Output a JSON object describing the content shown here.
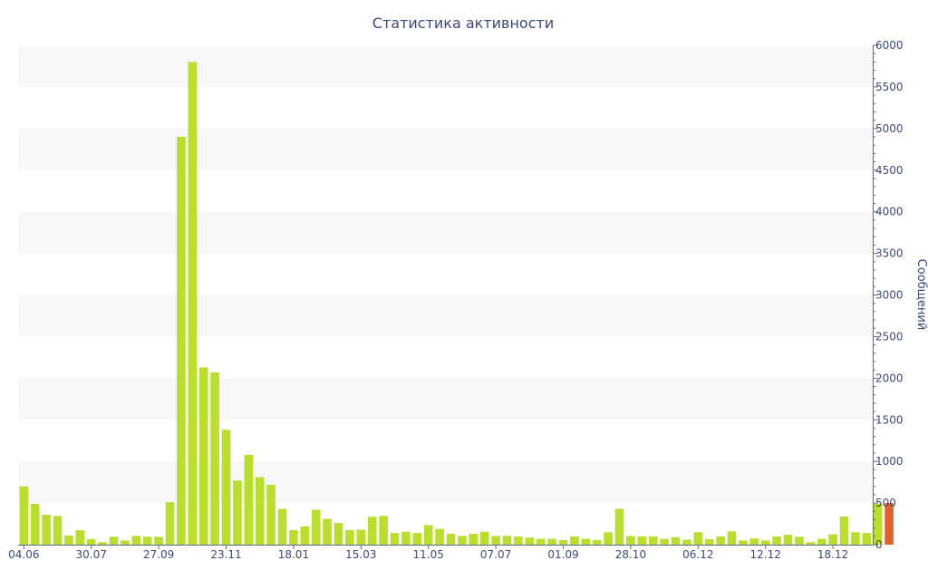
{
  "colors": {
    "bar": "#b9de2c",
    "bar_last": "#e0622f",
    "band": "#f7f7f7",
    "axis": "#5c6a92",
    "text": "#3d4a7a"
  },
  "chart_data": {
    "type": "bar",
    "title": "Статистика активности",
    "xlabel": "",
    "ylabel": "Сообщений",
    "y_axis_position": "right",
    "ylim": [
      0,
      6000
    ],
    "yticks": [
      0,
      500,
      1000,
      1500,
      2000,
      2500,
      3000,
      3500,
      4000,
      4500,
      5000,
      5500,
      6000
    ],
    "xtick_labels": [
      {
        "label": "04.06",
        "index": 0
      },
      {
        "label": "30.07",
        "index": 6
      },
      {
        "label": "27.09",
        "index": 12
      },
      {
        "label": "23.11",
        "index": 18
      },
      {
        "label": "18.01",
        "index": 24
      },
      {
        "label": "15.03",
        "index": 30
      },
      {
        "label": "11.05",
        "index": 36
      },
      {
        "label": "07.07",
        "index": 42
      },
      {
        "label": "01.09",
        "index": 48
      },
      {
        "label": "28.10",
        "index": 54
      },
      {
        "label": "06.12",
        "index": 60
      },
      {
        "label": "12.12",
        "index": 66
      },
      {
        "label": "18.12",
        "index": 72
      }
    ],
    "grid": "alternating horizontal bands",
    "values": [
      700,
      490,
      360,
      345,
      110,
      175,
      65,
      30,
      95,
      50,
      105,
      95,
      95,
      510,
      4900,
      5800,
      2130,
      2070,
      1380,
      770,
      1080,
      810,
      720,
      430,
      175,
      220,
      420,
      310,
      260,
      175,
      180,
      335,
      345,
      140,
      155,
      140,
      235,
      190,
      130,
      105,
      130,
      155,
      105,
      105,
      100,
      85,
      70,
      70,
      55,
      100,
      70,
      55,
      150,
      430,
      105,
      100,
      100,
      70,
      90,
      60,
      150,
      65,
      100,
      160,
      50,
      75,
      50,
      100,
      120,
      95,
      30,
      70,
      125,
      340,
      150,
      140,
      490,
      500
    ],
    "highlight_last": true
  }
}
